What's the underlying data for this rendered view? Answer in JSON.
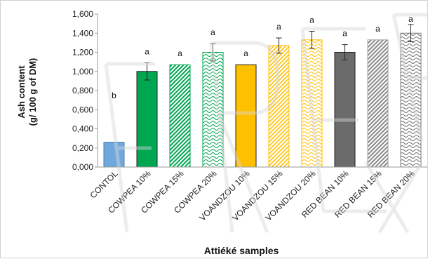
{
  "chart_data": {
    "type": "bar",
    "title": "",
    "xlabel": "Attiéké samples",
    "ylabel_lines": [
      "Ash content",
      "(g/ 100 g of DM)"
    ],
    "ylim": [
      0,
      1.6
    ],
    "yticks": [
      "0,000",
      "0,200",
      "0,400",
      "0,600",
      "0,800",
      "1,000",
      "1,200",
      "1,400",
      "1,600"
    ],
    "ytick_values": [
      0,
      0.2,
      0.4,
      0.6,
      0.8,
      1.0,
      1.2,
      1.4,
      1.6
    ],
    "categories": [
      "CONTOL",
      "COWPEA 10%",
      "COWPEA 15%",
      "COWPEA 20%",
      "VOANDZOU 10%",
      "VOANDZOU 15%",
      "VOANDZOU 20%",
      "RED BEAN 10%",
      "RED BEAN 15%",
      "RED BEAN 20%"
    ],
    "values": [
      0.26,
      1.0,
      1.07,
      1.2,
      1.07,
      1.27,
      1.33,
      1.2,
      1.33,
      1.4
    ],
    "errors": [
      0,
      0.09,
      0,
      0.09,
      0,
      0.08,
      0.09,
      0.08,
      0,
      0.09
    ],
    "significance_letters": [
      "b",
      "a",
      "a",
      "a",
      "a",
      "a",
      "a",
      "a",
      "a",
      "a"
    ],
    "colors": [
      "#6fa8dc",
      "#00a650",
      "#00a650",
      "#00a650",
      "#ffc000",
      "#ffc000",
      "#ffc000",
      "#6b6b6b",
      "#a0a0a0",
      "#7f7f7f"
    ],
    "fills": [
      "solid",
      "solid",
      "diagonal",
      "wave",
      "solid",
      "diagonal",
      "wave",
      "solid",
      "diagonal",
      "wave"
    ],
    "grid": false,
    "legend": "none"
  }
}
